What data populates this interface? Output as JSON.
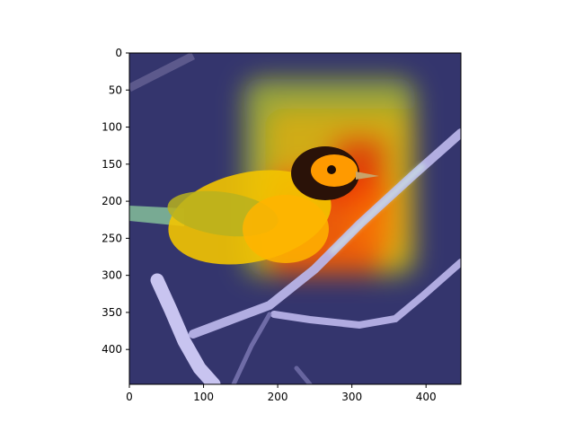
{
  "chart_data": {
    "type": "heatmap",
    "title": "",
    "xlabel": "",
    "ylabel": "",
    "xlim": [
      0,
      447
    ],
    "ylim": [
      447,
      0
    ],
    "x_ticks": [
      0,
      100,
      200,
      300,
      400
    ],
    "y_ticks": [
      0,
      50,
      100,
      150,
      200,
      250,
      300,
      350,
      400
    ],
    "grid": false,
    "colormap": "jet",
    "overlay_base_image": "photo of a yellow bird with a black face perched on a bare branch",
    "heat_regions": [
      {
        "x": [
          155,
          385
        ],
        "y": [
          35,
          300
        ],
        "level": 0.6
      },
      {
        "x": [
          185,
          380
        ],
        "y": [
          75,
          290
        ],
        "level": 0.7
      },
      {
        "x": [
          180,
          345
        ],
        "y": [
          160,
          300
        ],
        "level": 0.85
      },
      {
        "x": [
          270,
          350
        ],
        "y": [
          110,
          210
        ],
        "level": 0.9
      },
      {
        "x": [
          295,
          365
        ],
        "y": [
          175,
          265
        ],
        "level": 0.75
      }
    ]
  },
  "colors": {
    "background": "#ffffff",
    "axis": "#000000",
    "image_base": "#3a3b7a",
    "bird_yellow": "#f5d400",
    "bird_face": "#2a1208",
    "branch": "#b8b4e8"
  }
}
